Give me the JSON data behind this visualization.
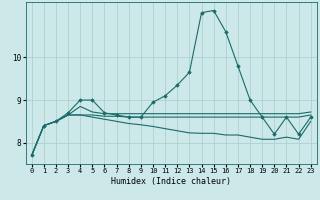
{
  "title": "",
  "xlabel": "Humidex (Indice chaleur)",
  "ylabel": "",
  "bg_color": "#cce8e8",
  "grid_color": "#b0d0d0",
  "line_color": "#1a6b6b",
  "marker_color": "#1a6b6b",
  "xlim": [
    -0.5,
    23.5
  ],
  "ylim": [
    7.5,
    11.3
  ],
  "yticks": [
    8,
    9,
    10
  ],
  "xticks": [
    0,
    1,
    2,
    3,
    4,
    5,
    6,
    7,
    8,
    9,
    10,
    11,
    12,
    13,
    14,
    15,
    16,
    17,
    18,
    19,
    20,
    21,
    22,
    23
  ],
  "series": [
    [
      7.7,
      8.4,
      8.5,
      8.7,
      9.0,
      9.0,
      8.7,
      8.65,
      8.6,
      8.6,
      8.95,
      9.1,
      9.35,
      9.65,
      11.05,
      11.1,
      10.6,
      9.8,
      9.0,
      8.6,
      8.2,
      8.6,
      8.2,
      8.6
    ],
    [
      7.7,
      8.4,
      8.5,
      8.65,
      8.65,
      8.65,
      8.62,
      8.62,
      8.6,
      8.6,
      8.6,
      8.6,
      8.6,
      8.6,
      8.6,
      8.6,
      8.6,
      8.6,
      8.6,
      8.6,
      8.6,
      8.6,
      8.6,
      8.65
    ],
    [
      7.7,
      8.4,
      8.5,
      8.65,
      8.85,
      8.72,
      8.68,
      8.68,
      8.68,
      8.68,
      8.68,
      8.68,
      8.68,
      8.68,
      8.68,
      8.68,
      8.68,
      8.68,
      8.68,
      8.68,
      8.68,
      8.68,
      8.68,
      8.72
    ],
    [
      7.7,
      8.4,
      8.5,
      8.65,
      8.65,
      8.6,
      8.55,
      8.5,
      8.45,
      8.42,
      8.38,
      8.33,
      8.28,
      8.23,
      8.22,
      8.22,
      8.18,
      8.18,
      8.13,
      8.08,
      8.08,
      8.13,
      8.08,
      8.5
    ]
  ],
  "show_markers": [
    true,
    false,
    false,
    false
  ]
}
